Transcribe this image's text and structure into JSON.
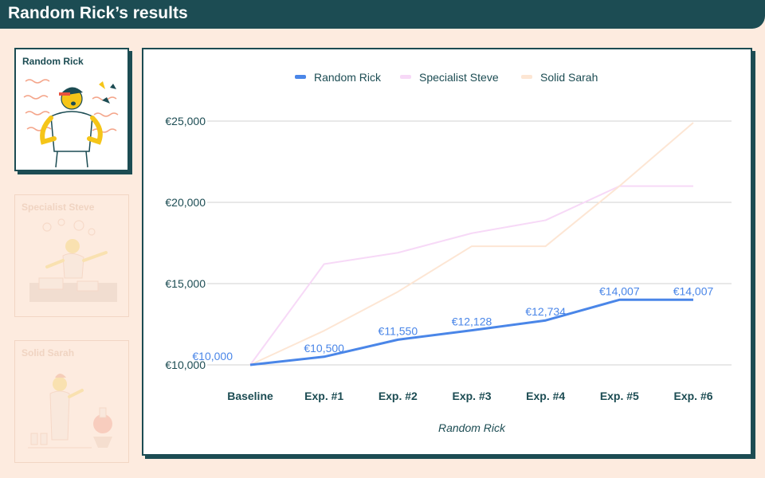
{
  "header": {
    "title": "Random Rick’s results"
  },
  "profiles": [
    {
      "name": "Random Rick",
      "state": "selected"
    },
    {
      "name": "Specialist Steve",
      "state": "inactive"
    },
    {
      "name": "Solid Sarah",
      "state": "inactive"
    }
  ],
  "chart_data": {
    "type": "line",
    "xlabel": "Random Rick",
    "categories": [
      "Baseline",
      "Exp. #1",
      "Exp. #2",
      "Exp. #3",
      "Exp. #4",
      "Exp. #5",
      "Exp. #6"
    ],
    "ylim": [
      10000,
      25000
    ],
    "y_ticks": [
      10000,
      15000,
      20000,
      25000
    ],
    "y_tick_labels": [
      "€10,000",
      "€15,000",
      "€20,000",
      "€25,000"
    ],
    "legend_position": "top",
    "grid": true,
    "series": [
      {
        "name": "Random Rick",
        "color": "#4a86e8",
        "emphasis": "active",
        "values": [
          10000,
          10500,
          11550,
          12128,
          12734,
          14007,
          14007
        ],
        "data_labels": [
          "€10,000",
          "€10,500",
          "€11,550",
          "€12,128",
          "€12,734",
          "€14,007",
          "€14,007"
        ]
      },
      {
        "name": "Specialist Steve",
        "color": "#f7d9f7",
        "emphasis": "faded",
        "values": [
          10000,
          16200,
          16900,
          18100,
          18900,
          21000,
          21000
        ]
      },
      {
        "name": "Solid Sarah",
        "color": "#fde6d4",
        "emphasis": "faded",
        "values": [
          10000,
          12100,
          14500,
          17300,
          17300,
          21000,
          24900
        ]
      }
    ]
  }
}
